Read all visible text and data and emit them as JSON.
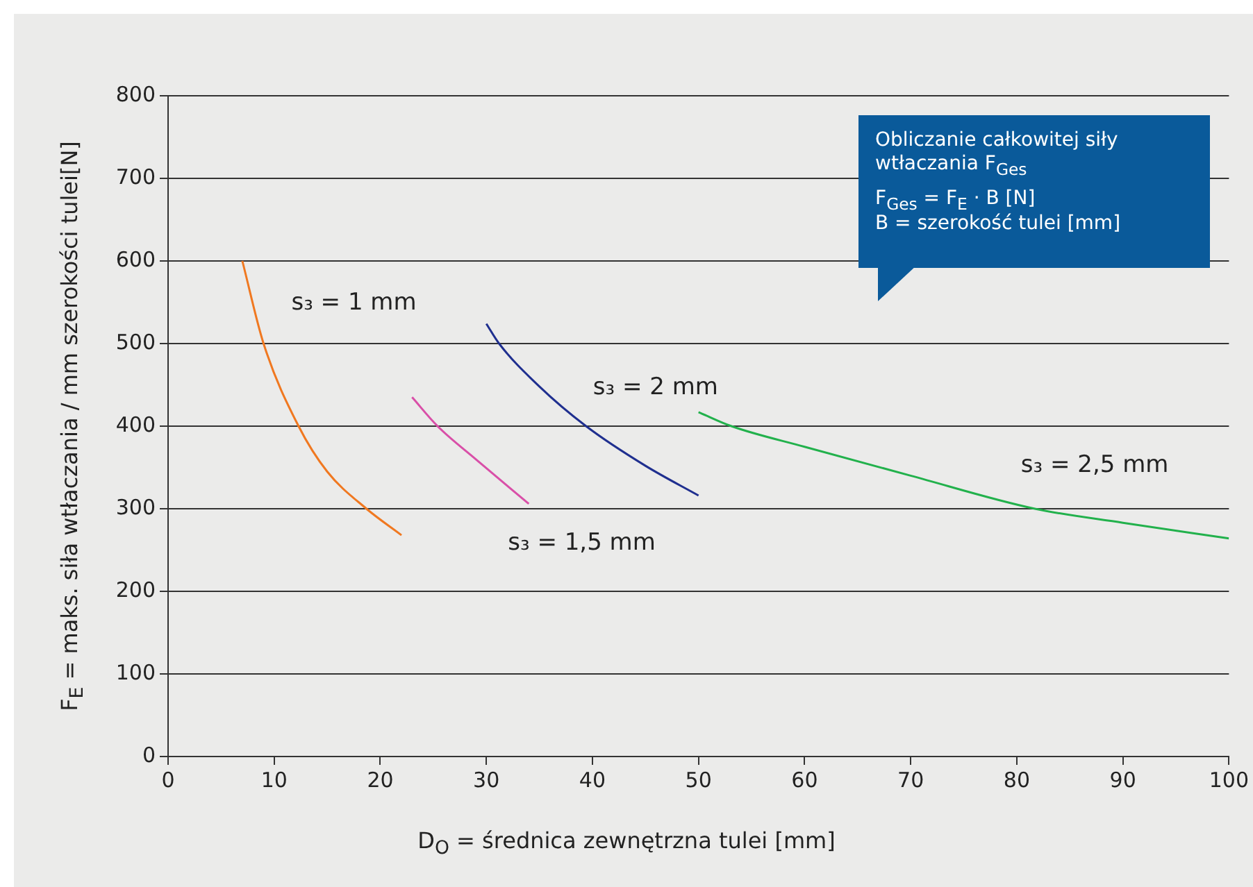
{
  "chart_data": {
    "type": "line",
    "xlabel": "D$_{O}$ = średnica zewnętrzna tulei [mm]",
    "ylabel": "F$_{E}$ = maks. siła wtłaczania / mm szerokości tulei[N]",
    "xlim": [
      0,
      100
    ],
    "xticks": [
      0,
      10,
      20,
      30,
      40,
      50,
      60,
      70,
      80,
      90,
      100
    ],
    "ylim": [
      0,
      800
    ],
    "yticks": [
      0,
      100,
      200,
      300,
      400,
      500,
      600,
      700,
      800
    ],
    "grid": "y",
    "marker": "none",
    "line_style": "solid",
    "series": [
      {
        "name": "s₃ = 1 mm",
        "color": "#f07820",
        "x": [
          7,
          9,
          12.3,
          15,
          18.7,
          22
        ],
        "values": [
          600,
          500,
          400,
          345,
          300,
          268
        ]
      },
      {
        "name": "s₃ = 1,5 mm",
        "color": "#d94fa8",
        "x": [
          23,
          25.4,
          29,
          34
        ],
        "values": [
          435,
          400,
          360,
          306
        ]
      },
      {
        "name": "s₃ = 2 mm",
        "color": "#1f2f8f",
        "x": [
          30,
          31.2,
          35,
          39.4,
          45,
          50
        ],
        "values": [
          524,
          500,
          448,
          400,
          352,
          316
        ]
      },
      {
        "name": "s₃ = 2,5 mm",
        "color": "#22b14c",
        "x": [
          50,
          53.1,
          60,
          70,
          81.7,
          90,
          100
        ],
        "values": [
          417,
          400,
          375,
          340,
          300,
          283,
          264
        ]
      }
    ],
    "annotations": [
      "Obliczanie całkowitej siły wtłaczania F$_{Ges}$",
      "F$_{Ges}$ = F$_{E}$ · B [N]",
      "B = szerokość tulei [mm]"
    ]
  }
}
